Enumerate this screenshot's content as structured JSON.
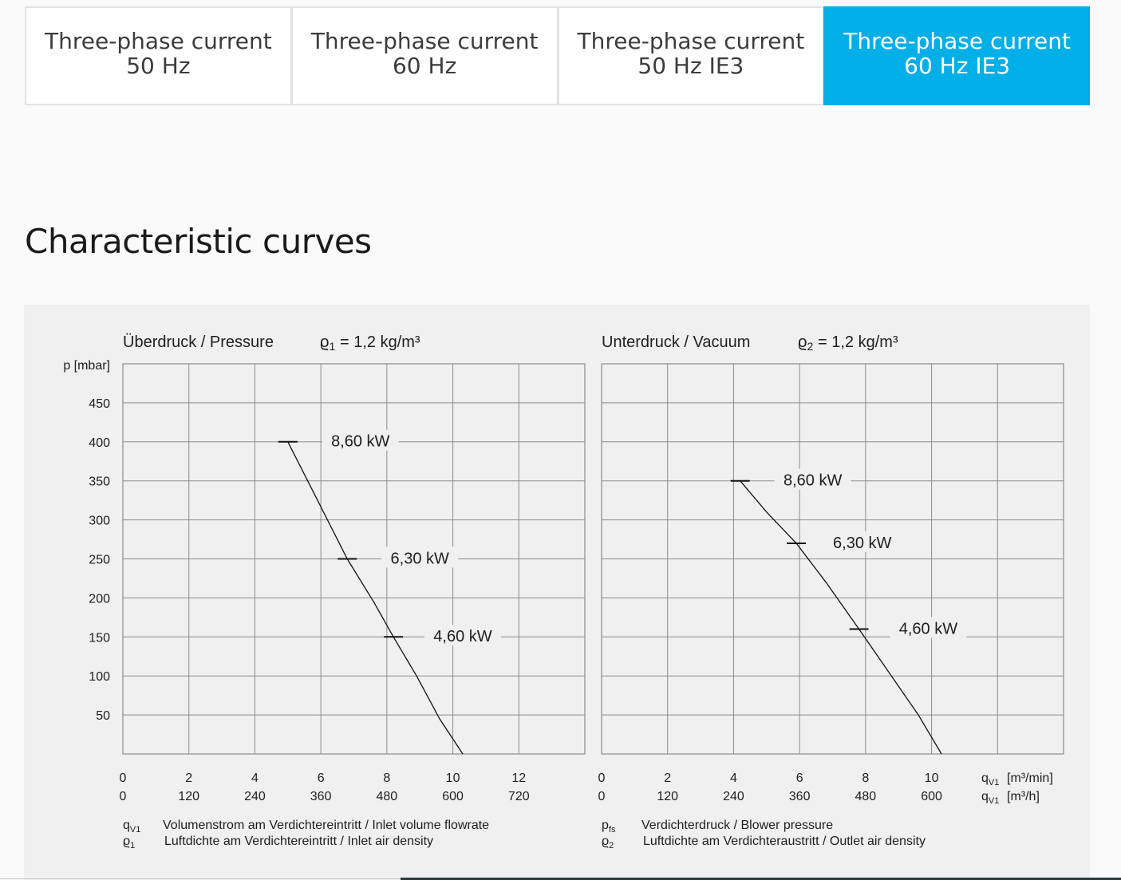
{
  "tabs": [
    {
      "line1": "Three-phase current",
      "line2": "50 Hz",
      "active": false
    },
    {
      "line1": "Three-phase current",
      "line2": "60 Hz",
      "active": false
    },
    {
      "line1": "Three-phase current",
      "line2": "50 Hz IE3",
      "active": false
    },
    {
      "line1": "Three-phase current",
      "line2": "60 Hz IE3",
      "active": true
    }
  ],
  "section_title": "Characteristic curves",
  "colors": {
    "accent": "#00aee8",
    "panel": "#f0f0f0",
    "grid": "#8c8c8c"
  },
  "chart_data": [
    {
      "type": "line",
      "title": "Überdruck / Pressure",
      "density_symbol": "ϱ",
      "density_sub": "1",
      "density_value": "= 1,2 kg/m³",
      "ylabel": "p [mbar]",
      "y_ticks": [
        "450",
        "400",
        "350",
        "300",
        "250",
        "200",
        "150",
        "100",
        "50"
      ],
      "ylim": [
        0,
        500
      ],
      "xlim": [
        0,
        14
      ],
      "x_ticks": [
        0,
        2,
        4,
        6,
        8,
        10,
        12
      ],
      "x_tick_labels_min": [
        "0",
        "2",
        "4",
        "6",
        "8",
        "10",
        "12"
      ],
      "x_tick_labels_h": [
        "0",
        "120",
        "240",
        "360",
        "480",
        "600",
        "720"
      ],
      "grid": true,
      "series": [
        {
          "x": [
            5.0,
            5.9,
            6.8,
            7.6,
            8.2,
            8.9,
            9.6,
            10.3
          ],
          "y": [
            400,
            325,
            250,
            195,
            150,
            100,
            45,
            0
          ]
        }
      ],
      "markers": [
        {
          "x": 5.0,
          "y": 400,
          "label": "8,60 kW",
          "label_x": 7.2,
          "label_y": 395
        },
        {
          "x": 6.8,
          "y": 250,
          "label": "6,30 kW",
          "label_x": 9.0,
          "label_y": 245
        },
        {
          "x": 8.2,
          "y": 150,
          "label": "4,60 kW",
          "label_x": 10.3,
          "label_y": 145
        }
      ],
      "legend": [
        {
          "sym": "q",
          "sub": "V1",
          "text": "Volumenstrom am Verdichtereintritt / Inlet volume flowrate"
        },
        {
          "sym": "ϱ",
          "sub": "1",
          "text": "Luftdichte am Verdichtereintritt / Inlet air density"
        }
      ]
    },
    {
      "type": "line",
      "title": "Unterdruck / Vacuum",
      "density_symbol": "ϱ",
      "density_sub": "2",
      "density_value": "= 1,2 kg/m³",
      "ylim": [
        0,
        500
      ],
      "xlim": [
        0,
        14
      ],
      "x_ticks": [
        0,
        2,
        4,
        6,
        8,
        10
      ],
      "x_tick_labels_min": [
        "0",
        "2",
        "4",
        "6",
        "8",
        "10"
      ],
      "x_tick_labels_h": [
        "0",
        "120",
        "240",
        "360",
        "480",
        "600"
      ],
      "x_unit_min": "[m³/min]",
      "x_unit_h": "[m³/h]",
      "x_unit_sym": "q",
      "x_unit_sub": "V1",
      "grid": true,
      "series": [
        {
          "x": [
            4.2,
            5.0,
            5.9,
            6.8,
            7.8,
            8.7,
            9.6,
            10.3
          ],
          "y": [
            350,
            310,
            270,
            220,
            160,
            105,
            50,
            0
          ]
        }
      ],
      "markers": [
        {
          "x": 4.2,
          "y": 350,
          "label": "8,60 kW",
          "label_x": 6.4,
          "label_y": 345
        },
        {
          "x": 5.9,
          "y": 270,
          "label": "6,30 kW",
          "label_x": 7.9,
          "label_y": 265
        },
        {
          "x": 7.8,
          "y": 160,
          "label": "4,60 kW",
          "label_x": 9.9,
          "label_y": 155
        }
      ],
      "legend": [
        {
          "sym": "p",
          "sub": "fs",
          "text": "Verdichterdruck / Blower pressure"
        },
        {
          "sym": "ϱ",
          "sub": "2",
          "text": "Luftdichte am Verdichteraustritt / Outlet air density"
        }
      ]
    }
  ]
}
